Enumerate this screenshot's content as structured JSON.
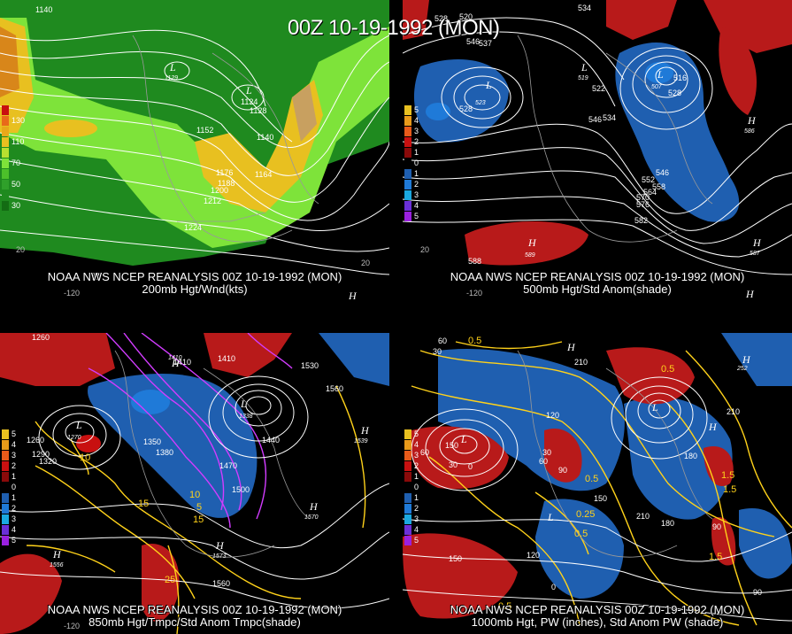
{
  "title": "00Z 10-19-1992 (MON)",
  "colors": {
    "background": "#000000",
    "contour_white": "#ffffff",
    "contour_yellow": "#ffd21a",
    "contour_magenta": "#d23cff",
    "anomaly_positive": "#b81a1a",
    "anomaly_negative": "#1f5fb0",
    "wind_green_light": "#7ee33a",
    "wind_green_dark": "#1f8a1f",
    "wind_yellow": "#e8c020",
    "wind_orange": "#d8861a"
  },
  "panels": [
    {
      "id": "p1",
      "caption_line1": "NOAA NWS NCEP REANALYSIS 00Z 10-19-1992 (MON)",
      "caption_line2": "200mb Hgt/Wnd(kts)",
      "legend": [
        {
          "label": "",
          "color": "#c81010"
        },
        {
          "label": "130",
          "color": "#e86a1a"
        },
        {
          "label": "",
          "color": "#e8a81a"
        },
        {
          "label": "110",
          "color": "#e8c020"
        },
        {
          "label": "",
          "color": "#b8e030"
        },
        {
          "label": "70",
          "color": "#7ee33a"
        },
        {
          "label": "",
          "color": "#4cc02a"
        },
        {
          "label": "50",
          "color": "#2fa02a"
        },
        {
          "label": "",
          "color": "#1f8a1f"
        },
        {
          "label": "30",
          "color": "#136c13"
        }
      ],
      "labels": [
        "1140",
        "1128",
        "1124",
        "1152",
        "1140",
        "1176",
        "1188",
        "1164",
        "1200",
        "1212",
        "1224",
        "20",
        "-120",
        "20"
      ],
      "centers": [
        {
          "type": "L",
          "value": "1129"
        },
        {
          "type": "L",
          "value": "1124"
        },
        {
          "type": "H",
          "value": ""
        },
        {
          "type": "H",
          "value": ""
        }
      ]
    },
    {
      "id": "p2",
      "caption_line1": "NOAA NWS NCEP REANALYSIS 00Z 10-19-1992 (MON)",
      "caption_line2": "500mb Hgt/Std Anom(shade)",
      "legend": [
        {
          "label": "5",
          "color": "#e8c020"
        },
        {
          "label": "4",
          "color": "#e89a1a"
        },
        {
          "label": "3",
          "color": "#e85a1a"
        },
        {
          "label": "2",
          "color": "#c81010"
        },
        {
          "label": "1",
          "color": "#8a0a0a"
        },
        {
          "label": "0",
          "color": "#000000"
        },
        {
          "label": "1",
          "color": "#1f5fb0"
        },
        {
          "label": "2",
          "color": "#1f7ad8"
        },
        {
          "label": "3",
          "color": "#1aa8e0"
        },
        {
          "label": "4",
          "color": "#6a30d8"
        },
        {
          "label": "5",
          "color": "#9a20e0"
        }
      ],
      "labels": [
        "534",
        "528",
        "546",
        "537",
        "528",
        "522",
        "534",
        "546",
        "546",
        "552",
        "558",
        "564",
        "570",
        "576",
        "582",
        "588",
        "516",
        "528",
        "520",
        "-120",
        "20"
      ],
      "centers": [
        {
          "type": "L",
          "value": "523"
        },
        {
          "type": "L",
          "value": "519"
        },
        {
          "type": "L",
          "value": "507"
        },
        {
          "type": "H",
          "value": "589"
        },
        {
          "type": "H",
          "value": "587"
        },
        {
          "type": "H",
          "value": "586"
        },
        {
          "type": "H",
          "value": ""
        }
      ]
    },
    {
      "id": "p3",
      "caption_line1": "NOAA NWS NCEP REANALYSIS 00Z 10-19-1992 (MON)",
      "caption_line2": "850mb Hgt/Tmpc/Std Anom Tmpc(shade)",
      "legend": [
        {
          "label": "5",
          "color": "#e8c020"
        },
        {
          "label": "4",
          "color": "#e89a1a"
        },
        {
          "label": "3",
          "color": "#e85a1a"
        },
        {
          "label": "2",
          "color": "#c81010"
        },
        {
          "label": "1",
          "color": "#8a0a0a"
        },
        {
          "label": "0",
          "color": "#000000"
        },
        {
          "label": "1",
          "color": "#1f5fb0"
        },
        {
          "label": "2",
          "color": "#1f7ad8"
        },
        {
          "label": "3",
          "color": "#1aa8e0"
        },
        {
          "label": "4",
          "color": "#6a30d8"
        },
        {
          "label": "5",
          "color": "#9a20e0"
        }
      ],
      "labels": [
        "1260",
        "1410",
        "1350",
        "1380",
        "1410",
        "1410",
        "1530",
        "1560",
        "1260",
        "1290",
        "1320",
        "1350",
        "1380",
        "1440",
        "1470",
        "1500",
        "15",
        "10",
        "5",
        "15",
        "25",
        "1560",
        "10",
        "-120"
      ],
      "centers": [
        {
          "type": "L",
          "value": "1270"
        },
        {
          "type": "L",
          "value": "1338"
        },
        {
          "type": "H",
          "value": "1539"
        },
        {
          "type": "H",
          "value": "1556"
        },
        {
          "type": "H",
          "value": "1573"
        },
        {
          "type": "H",
          "value": "1410"
        },
        {
          "type": "H",
          "value": "1570"
        }
      ]
    },
    {
      "id": "p4",
      "caption_line1": "NOAA NWS NCEP REANALYSIS 00Z 10-19-1992 (MON)",
      "caption_line2": "1000mb Hgt, PW (inches), Std Anom PW (shade)",
      "legend": [
        {
          "label": "5",
          "color": "#e8c020"
        },
        {
          "label": "4",
          "color": "#e89a1a"
        },
        {
          "label": "3",
          "color": "#e85a1a"
        },
        {
          "label": "2",
          "color": "#c81010"
        },
        {
          "label": "1",
          "color": "#8a0a0a"
        },
        {
          "label": "0",
          "color": "#000000"
        },
        {
          "label": "1",
          "color": "#1f5fb0"
        },
        {
          "label": "2",
          "color": "#1f7ad8"
        },
        {
          "label": "3",
          "color": "#1aa8e0"
        },
        {
          "label": "4",
          "color": "#6a30d8"
        },
        {
          "label": "5",
          "color": "#9a20e0"
        }
      ],
      "labels": [
        "60",
        "30",
        "120",
        "0.5",
        "210",
        "0.5",
        "150",
        "60",
        "30",
        "120",
        "210",
        "0",
        "30",
        "60",
        "90",
        "0.5",
        "150",
        "0.25",
        "0.5",
        "210",
        "180",
        "180",
        "1.5",
        "1.5",
        "90",
        "1.5",
        "150",
        "120",
        "0",
        "90",
        "0.5"
      ],
      "centers": [
        {
          "type": "L",
          "value": ""
        },
        {
          "type": "L",
          "value": ""
        },
        {
          "type": "L",
          "value": ""
        },
        {
          "type": "H",
          "value": ""
        },
        {
          "type": "H",
          "value": "252"
        },
        {
          "type": "H",
          "value": ""
        }
      ]
    }
  ]
}
